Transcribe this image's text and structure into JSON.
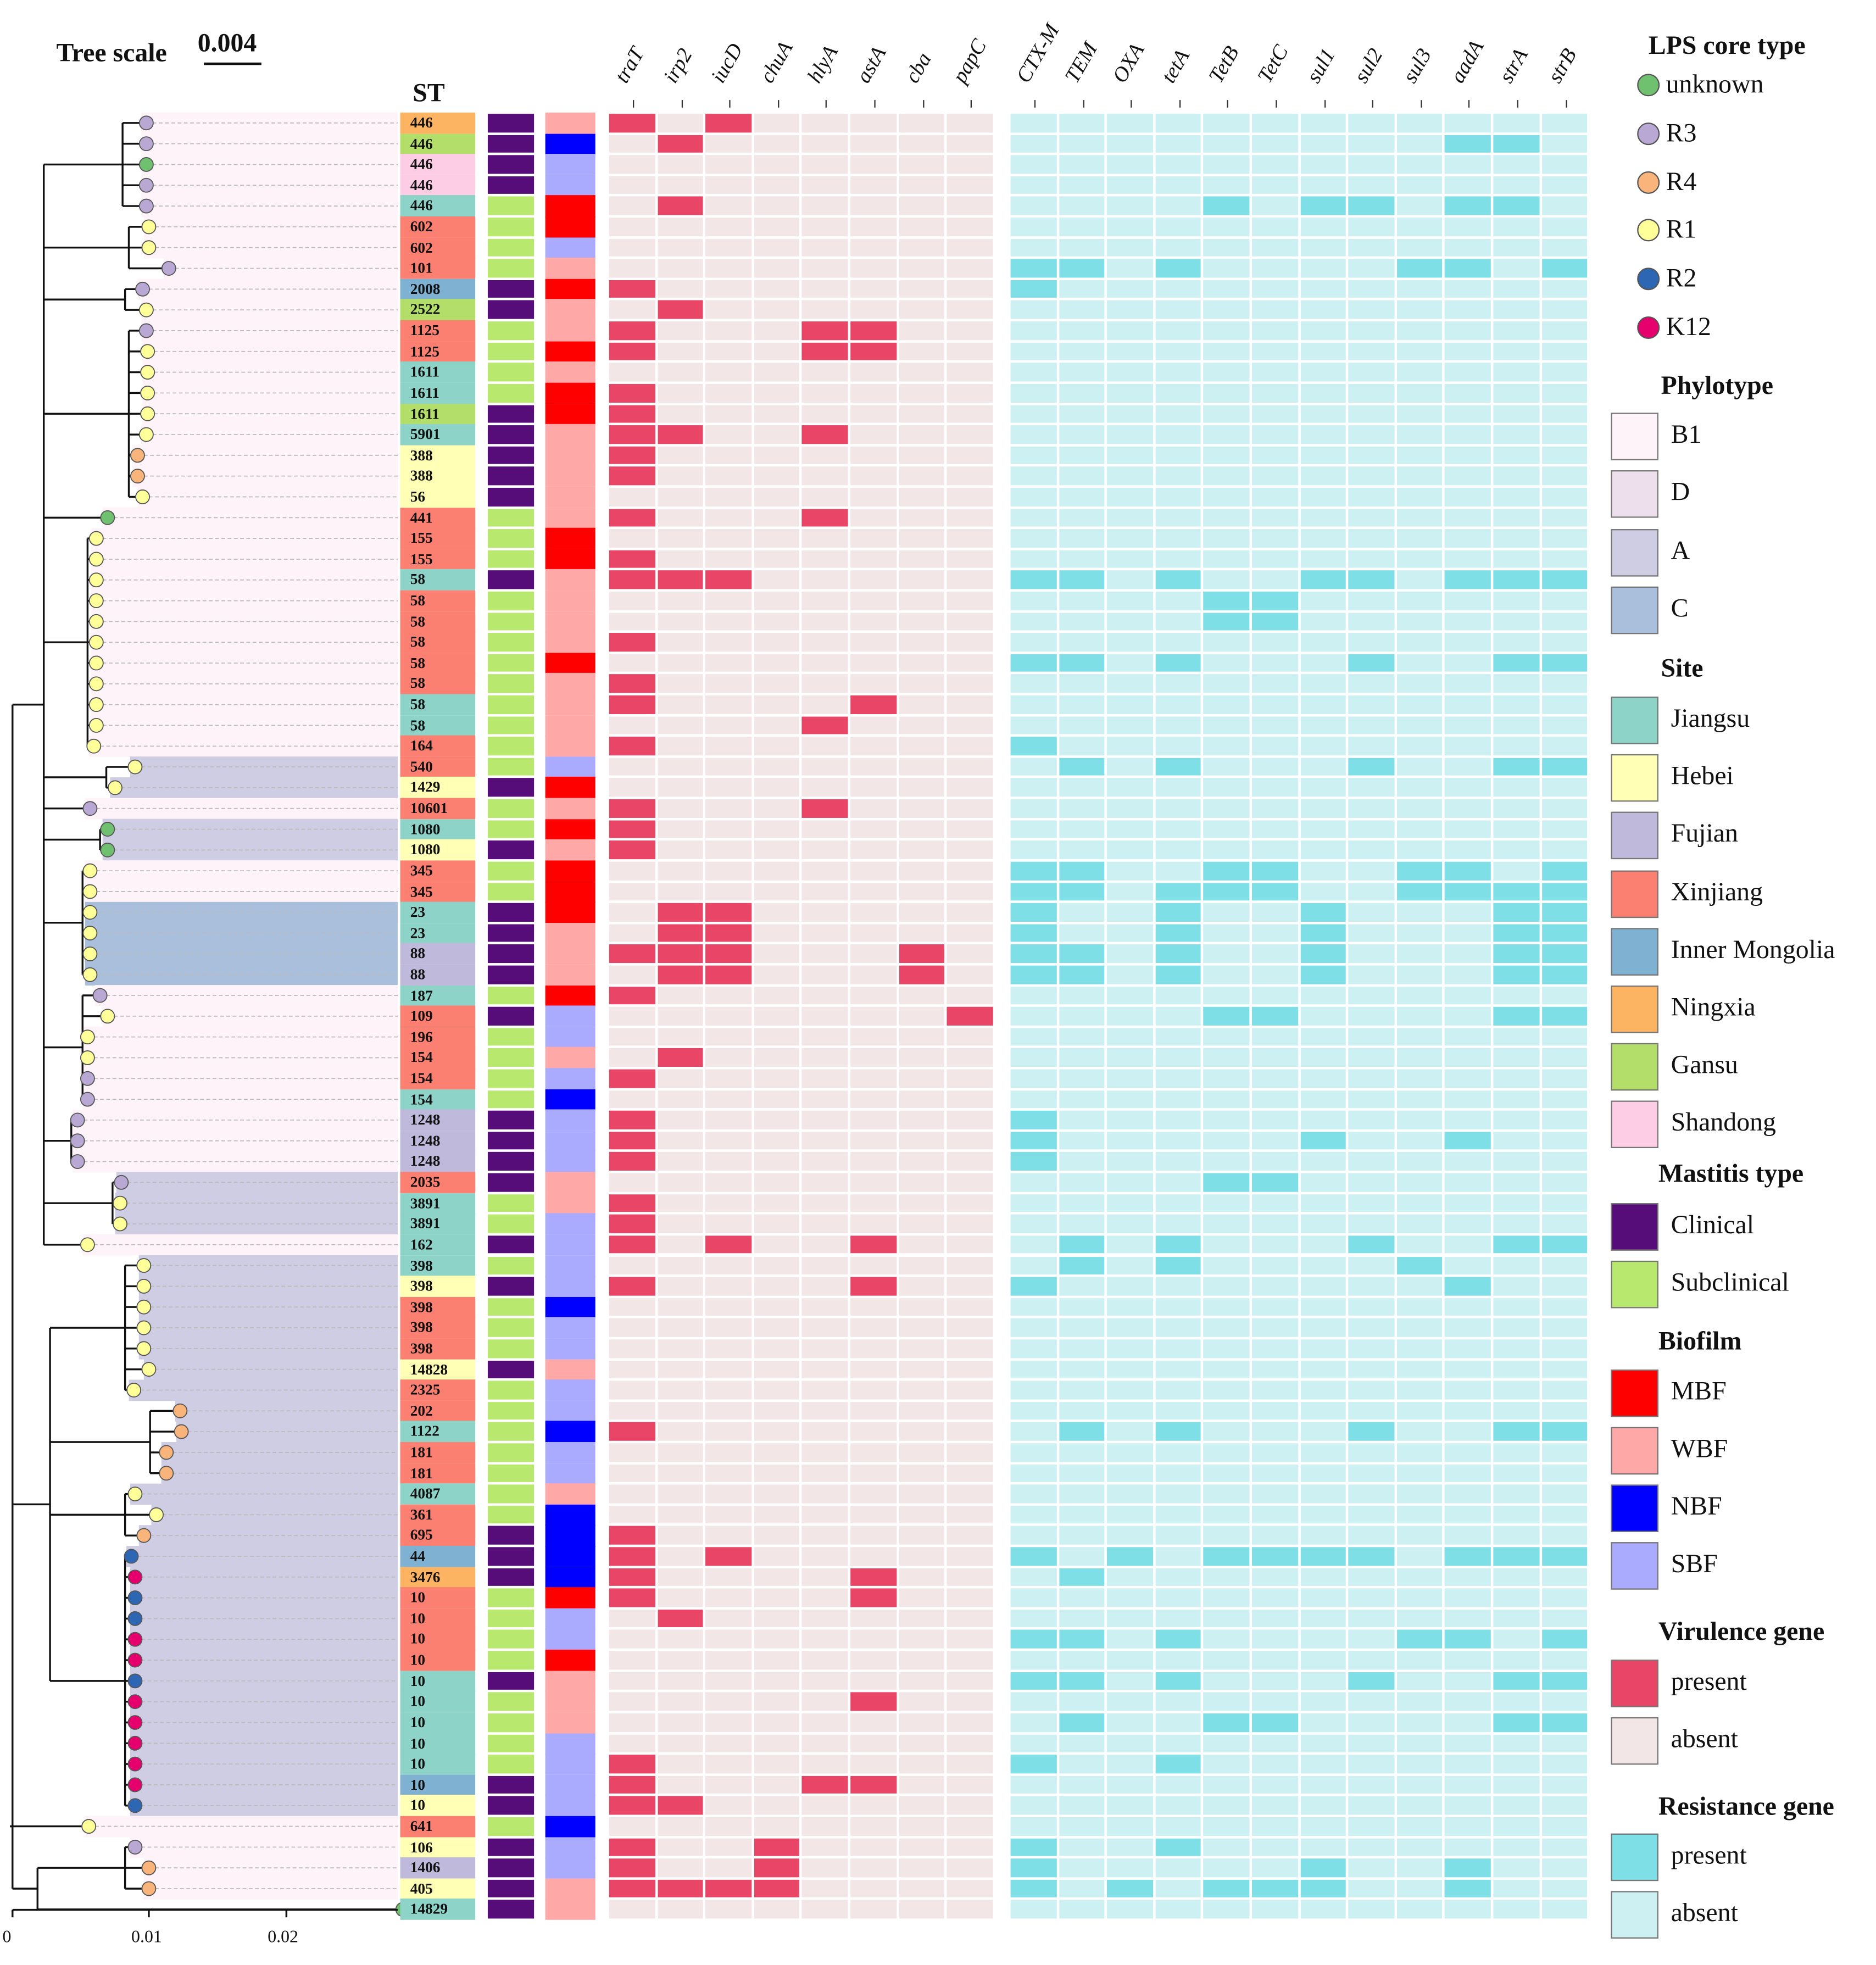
{
  "tree_scale": {
    "label": "Tree scale",
    "value": "0.004"
  },
  "axis_ticks": [
    "0",
    "0.01",
    "0.02"
  ],
  "st_header": "ST",
  "virulence_genes": [
    "traT",
    "irp2",
    "iucD",
    "chuA",
    "hlyA",
    "astA",
    "cba",
    "papC"
  ],
  "resistance_genes": [
    "CTX-M",
    "TEM",
    "OXA",
    "tetA",
    "TetB",
    "TetC",
    "sul1",
    "sul2",
    "sul3",
    "aadA",
    "strA",
    "strB"
  ],
  "colors": {
    "site": {
      "J": "#8ed3c7",
      "H": "#ffffb5",
      "F": "#bfbadb",
      "X": "#fb8072",
      "I": "#7fb1d3",
      "N": "#fdb462",
      "G": "#b3de69",
      "S": "#fccde5"
    },
    "mastitis": {
      "C": "#560d7a",
      "S": "#b8e86e"
    },
    "biofilm": {
      "M": "#ff0000",
      "W": "#ffa8a8",
      "N": "#0000ff",
      "S": "#aaaaff"
    },
    "lps": {
      "u": "#6fc06f",
      "R3": "#b9a8d4",
      "R4": "#f8b47a",
      "R1": "#ffff99",
      "R2": "#2d66b2",
      "K12": "#e6006e"
    },
    "phylo": {
      "B1": "#fdf3f8",
      "D": "#ede0ec",
      "A": "#cfcde3",
      "C": "#a9bfdc"
    },
    "vir": {
      "1": "#e94667",
      "0": "#f2e6e6"
    },
    "res": {
      "1": "#7ee0e6",
      "0": "#cdf0f2"
    }
  },
  "legend": {
    "lps": {
      "title": "LPS core type",
      "items": [
        {
          "key": "u",
          "label": "unknown"
        },
        {
          "key": "R3",
          "label": "R3"
        },
        {
          "key": "R4",
          "label": "R4"
        },
        {
          "key": "R1",
          "label": "R1"
        },
        {
          "key": "R2",
          "label": "R2"
        },
        {
          "key": "K12",
          "label": "K12"
        }
      ]
    },
    "phylotype": {
      "title": "Phylotype",
      "items": [
        {
          "key": "B1",
          "label": "B1"
        },
        {
          "key": "D",
          "label": "D"
        },
        {
          "key": "A",
          "label": "A"
        },
        {
          "key": "C",
          "label": "C"
        }
      ]
    },
    "site": {
      "title": "Site",
      "items": [
        {
          "key": "J",
          "label": "Jiangsu"
        },
        {
          "key": "H",
          "label": "Hebei"
        },
        {
          "key": "F",
          "label": "Fujian"
        },
        {
          "key": "X",
          "label": "Xinjiang"
        },
        {
          "key": "I",
          "label": "Inner Mongolia"
        },
        {
          "key": "N",
          "label": "Ningxia"
        },
        {
          "key": "G",
          "label": "Gansu"
        },
        {
          "key": "S",
          "label": "Shandong"
        }
      ]
    },
    "mastitis": {
      "title": "Mastitis type",
      "items": [
        {
          "key": "C",
          "label": "Clinical"
        },
        {
          "key": "S",
          "label": "Subclinical"
        }
      ]
    },
    "biofilm": {
      "title": "Biofilm",
      "items": [
        {
          "key": "M",
          "label": "MBF"
        },
        {
          "key": "W",
          "label": "WBF"
        },
        {
          "key": "N",
          "label": "NBF"
        },
        {
          "key": "S",
          "label": "SBF"
        }
      ]
    },
    "virulence": {
      "title": "Virulence gene",
      "items": [
        {
          "key": "1",
          "label": "present"
        },
        {
          "key": "0",
          "label": "absent"
        }
      ]
    },
    "resistance": {
      "title": "Resistance gene",
      "items": [
        {
          "key": "1",
          "label": "present"
        },
        {
          "key": "0",
          "label": "absent"
        }
      ]
    }
  },
  "rows": [
    {
      "st": "446",
      "site": "N",
      "m": "C",
      "b": "W",
      "lps": "R3",
      "p": "B1",
      "v": "10100000",
      "r": "000000000000"
    },
    {
      "st": "446",
      "site": "G",
      "m": "C",
      "b": "N",
      "lps": "R3",
      "p": "B1",
      "v": "01000000",
      "r": "000000000110"
    },
    {
      "st": "446",
      "site": "S",
      "m": "C",
      "b": "S",
      "lps": "u",
      "p": "B1",
      "v": "00000000",
      "r": "000000000000"
    },
    {
      "st": "446",
      "site": "S",
      "m": "C",
      "b": "S",
      "lps": "R3",
      "p": "B1",
      "v": "00000000",
      "r": "000000000000"
    },
    {
      "st": "446",
      "site": "J",
      "m": "S",
      "b": "M",
      "lps": "R3",
      "p": "B1",
      "v": "01000000",
      "r": "000010110110"
    },
    {
      "st": "602",
      "site": "X",
      "m": "S",
      "b": "M",
      "lps": "R1",
      "p": "B1",
      "v": "00000000",
      "r": "000000000000"
    },
    {
      "st": "602",
      "site": "X",
      "m": "S",
      "b": "S",
      "lps": "R1",
      "p": "B1",
      "v": "00000000",
      "r": "000000000000"
    },
    {
      "st": "101",
      "site": "X",
      "m": "S",
      "b": "W",
      "lps": "R3",
      "p": "B1",
      "v": "00000000",
      "r": "110100001101"
    },
    {
      "st": "2008",
      "site": "I",
      "m": "C",
      "b": "M",
      "lps": "R3",
      "p": "B1",
      "v": "10000000",
      "r": "100000000000"
    },
    {
      "st": "2522",
      "site": "G",
      "m": "C",
      "b": "W",
      "lps": "R1",
      "p": "B1",
      "v": "01000000",
      "r": "000000000000"
    },
    {
      "st": "1125",
      "site": "X",
      "m": "S",
      "b": "W",
      "lps": "R3",
      "p": "B1",
      "v": "10001100",
      "r": "000000000000"
    },
    {
      "st": "1125",
      "site": "X",
      "m": "S",
      "b": "M",
      "lps": "R1",
      "p": "B1",
      "v": "10001100",
      "r": "000000000000"
    },
    {
      "st": "1611",
      "site": "J",
      "m": "S",
      "b": "W",
      "lps": "R1",
      "p": "B1",
      "v": "00000000",
      "r": "000000000000"
    },
    {
      "st": "1611",
      "site": "J",
      "m": "S",
      "b": "M",
      "lps": "R1",
      "p": "B1",
      "v": "10000000",
      "r": "000000000000"
    },
    {
      "st": "1611",
      "site": "G",
      "m": "C",
      "b": "M",
      "lps": "R1",
      "p": "B1",
      "v": "10000000",
      "r": "000000000000"
    },
    {
      "st": "5901",
      "site": "J",
      "m": "C",
      "b": "W",
      "lps": "R1",
      "p": "B1",
      "v": "11001000",
      "r": "000000000000"
    },
    {
      "st": "388",
      "site": "H",
      "m": "C",
      "b": "W",
      "lps": "R4",
      "p": "B1",
      "v": "10000000",
      "r": "000000000000"
    },
    {
      "st": "388",
      "site": "H",
      "m": "C",
      "b": "W",
      "lps": "R4",
      "p": "B1",
      "v": "10000000",
      "r": "000000000000"
    },
    {
      "st": "56",
      "site": "H",
      "m": "C",
      "b": "W",
      "lps": "R1",
      "p": "B1",
      "v": "00000000",
      "r": "000000000000"
    },
    {
      "st": "441",
      "site": "X",
      "m": "S",
      "b": "W",
      "lps": "u",
      "p": "B1",
      "v": "10001000",
      "r": "000000000000"
    },
    {
      "st": "155",
      "site": "X",
      "m": "S",
      "b": "M",
      "lps": "R1",
      "p": "B1",
      "v": "00000000",
      "r": "000000000000"
    },
    {
      "st": "155",
      "site": "X",
      "m": "S",
      "b": "M",
      "lps": "R1",
      "p": "B1",
      "v": "10000000",
      "r": "000000000000"
    },
    {
      "st": "58",
      "site": "J",
      "m": "C",
      "b": "W",
      "lps": "R1",
      "p": "B1",
      "v": "11100000",
      "r": "110100110111"
    },
    {
      "st": "58",
      "site": "X",
      "m": "S",
      "b": "W",
      "lps": "R1",
      "p": "B1",
      "v": "00000000",
      "r": "000011000000"
    },
    {
      "st": "58",
      "site": "X",
      "m": "S",
      "b": "W",
      "lps": "R1",
      "p": "B1",
      "v": "00000000",
      "r": "000011000000"
    },
    {
      "st": "58",
      "site": "X",
      "m": "S",
      "b": "W",
      "lps": "R1",
      "p": "B1",
      "v": "10000000",
      "r": "000000000000"
    },
    {
      "st": "58",
      "site": "X",
      "m": "S",
      "b": "M",
      "lps": "R1",
      "p": "B1",
      "v": "00000000",
      "r": "110100010011"
    },
    {
      "st": "58",
      "site": "X",
      "m": "S",
      "b": "W",
      "lps": "R1",
      "p": "B1",
      "v": "10000000",
      "r": "000000000000"
    },
    {
      "st": "58",
      "site": "J",
      "m": "S",
      "b": "W",
      "lps": "R1",
      "p": "B1",
      "v": "10000100",
      "r": "000000000000"
    },
    {
      "st": "58",
      "site": "J",
      "m": "S",
      "b": "W",
      "lps": "R1",
      "p": "B1",
      "v": "00001000",
      "r": "000000000000"
    },
    {
      "st": "164",
      "site": "X",
      "m": "S",
      "b": "W",
      "lps": "R1",
      "p": "B1",
      "v": "10000000",
      "r": "100000000000"
    },
    {
      "st": "540",
      "site": "X",
      "m": "S",
      "b": "S",
      "lps": "R1",
      "p": "A",
      "v": "00000000",
      "r": "010100010011"
    },
    {
      "st": "1429",
      "site": "H",
      "m": "C",
      "b": "M",
      "lps": "R1",
      "p": "A",
      "v": "00000000",
      "r": "000000000000"
    },
    {
      "st": "10601",
      "site": "X",
      "m": "S",
      "b": "W",
      "lps": "R3",
      "p": "B1",
      "v": "10001000",
      "r": "000000000000"
    },
    {
      "st": "1080",
      "site": "J",
      "m": "S",
      "b": "M",
      "lps": "u",
      "p": "A",
      "v": "10000000",
      "r": "000000000000"
    },
    {
      "st": "1080",
      "site": "H",
      "m": "C",
      "b": "W",
      "lps": "u",
      "p": "A",
      "v": "10000000",
      "r": "000000000000"
    },
    {
      "st": "345",
      "site": "X",
      "m": "S",
      "b": "M",
      "lps": "R1",
      "p": "B1",
      "v": "00000000",
      "r": "110011001101"
    },
    {
      "st": "345",
      "site": "X",
      "m": "S",
      "b": "M",
      "lps": "R1",
      "p": "B1",
      "v": "00000000",
      "r": "110111001111"
    },
    {
      "st": "23",
      "site": "J",
      "m": "C",
      "b": "M",
      "lps": "R1",
      "p": "C",
      "v": "01100000",
      "r": "100100100011"
    },
    {
      "st": "23",
      "site": "J",
      "m": "C",
      "b": "W",
      "lps": "R1",
      "p": "C",
      "v": "01100000",
      "r": "100100100011"
    },
    {
      "st": "88",
      "site": "F",
      "m": "C",
      "b": "W",
      "lps": "R1",
      "p": "C",
      "v": "11100010",
      "r": "110100100011"
    },
    {
      "st": "88",
      "site": "F",
      "m": "C",
      "b": "W",
      "lps": "R1",
      "p": "C",
      "v": "01100010",
      "r": "110100100011"
    },
    {
      "st": "187",
      "site": "J",
      "m": "S",
      "b": "M",
      "lps": "R3",
      "p": "B1",
      "v": "10000000",
      "r": "000000000000"
    },
    {
      "st": "109",
      "site": "X",
      "m": "C",
      "b": "S",
      "lps": "R1",
      "p": "B1",
      "v": "00000001",
      "r": "000011000011"
    },
    {
      "st": "196",
      "site": "X",
      "m": "S",
      "b": "S",
      "lps": "R1",
      "p": "B1",
      "v": "00000000",
      "r": "000000000000"
    },
    {
      "st": "154",
      "site": "X",
      "m": "S",
      "b": "W",
      "lps": "R1",
      "p": "B1",
      "v": "01000000",
      "r": "000000000000"
    },
    {
      "st": "154",
      "site": "X",
      "m": "S",
      "b": "S",
      "lps": "R3",
      "p": "B1",
      "v": "10000000",
      "r": "000000000000"
    },
    {
      "st": "154",
      "site": "J",
      "m": "S",
      "b": "N",
      "lps": "R3",
      "p": "B1",
      "v": "00000000",
      "r": "000000000000"
    },
    {
      "st": "1248",
      "site": "F",
      "m": "C",
      "b": "S",
      "lps": "R3",
      "p": "B1",
      "v": "10000000",
      "r": "100000000000"
    },
    {
      "st": "1248",
      "site": "F",
      "m": "C",
      "b": "S",
      "lps": "R3",
      "p": "B1",
      "v": "10000000",
      "r": "100000100100"
    },
    {
      "st": "1248",
      "site": "F",
      "m": "C",
      "b": "S",
      "lps": "R3",
      "p": "B1",
      "v": "10000000",
      "r": "100000000000"
    },
    {
      "st": "2035",
      "site": "X",
      "m": "C",
      "b": "W",
      "lps": "R3",
      "p": "A",
      "v": "00000000",
      "r": "000011000000"
    },
    {
      "st": "3891",
      "site": "J",
      "m": "S",
      "b": "W",
      "lps": "R1",
      "p": "A",
      "v": "10000000",
      "r": "000000000000"
    },
    {
      "st": "3891",
      "site": "J",
      "m": "S",
      "b": "S",
      "lps": "R1",
      "p": "A",
      "v": "10000000",
      "r": "000000000000"
    },
    {
      "st": "162",
      "site": "J",
      "m": "C",
      "b": "S",
      "lps": "R1",
      "p": "B1",
      "v": "10100100",
      "r": "010100010011"
    },
    {
      "st": "398",
      "site": "J",
      "m": "S",
      "b": "S",
      "lps": "R1",
      "p": "A",
      "v": "00000000",
      "r": "010100001000"
    },
    {
      "st": "398",
      "site": "H",
      "m": "C",
      "b": "S",
      "lps": "R1",
      "p": "A",
      "v": "10000100",
      "r": "100000000100"
    },
    {
      "st": "398",
      "site": "X",
      "m": "S",
      "b": "N",
      "lps": "R1",
      "p": "A",
      "v": "00000000",
      "r": "000000000000"
    },
    {
      "st": "398",
      "site": "X",
      "m": "S",
      "b": "S",
      "lps": "R1",
      "p": "A",
      "v": "00000000",
      "r": "000000000000"
    },
    {
      "st": "398",
      "site": "X",
      "m": "S",
      "b": "S",
      "lps": "R1",
      "p": "A",
      "v": "00000000",
      "r": "000000000000"
    },
    {
      "st": "14828",
      "site": "H",
      "m": "C",
      "b": "W",
      "lps": "R1",
      "p": "A",
      "v": "00000000",
      "r": "000000000000"
    },
    {
      "st": "2325",
      "site": "X",
      "m": "S",
      "b": "S",
      "lps": "R1",
      "p": "A",
      "v": "00000000",
      "r": "000000000000"
    },
    {
      "st": "202",
      "site": "X",
      "m": "S",
      "b": "S",
      "lps": "R4",
      "p": "A",
      "v": "00000000",
      "r": "000000000000"
    },
    {
      "st": "1122",
      "site": "J",
      "m": "S",
      "b": "N",
      "lps": "R4",
      "p": "A",
      "v": "10000000",
      "r": "010100010011"
    },
    {
      "st": "181",
      "site": "X",
      "m": "S",
      "b": "S",
      "lps": "R4",
      "p": "A",
      "v": "00000000",
      "r": "000000000000"
    },
    {
      "st": "181",
      "site": "X",
      "m": "S",
      "b": "S",
      "lps": "R4",
      "p": "A",
      "v": "00000000",
      "r": "000000000000"
    },
    {
      "st": "4087",
      "site": "J",
      "m": "S",
      "b": "W",
      "lps": "R1",
      "p": "A",
      "v": "00000000",
      "r": "000000000000"
    },
    {
      "st": "361",
      "site": "X",
      "m": "S",
      "b": "N",
      "lps": "R1",
      "p": "A",
      "v": "00000000",
      "r": "000000000000"
    },
    {
      "st": "695",
      "site": "X",
      "m": "C",
      "b": "N",
      "lps": "R4",
      "p": "A",
      "v": "10000000",
      "r": "000000000000"
    },
    {
      "st": "44",
      "site": "I",
      "m": "C",
      "b": "N",
      "lps": "R2",
      "p": "A",
      "v": "10100000",
      "r": "101011110111"
    },
    {
      "st": "3476",
      "site": "N",
      "m": "C",
      "b": "N",
      "lps": "K12",
      "p": "A",
      "v": "10000100",
      "r": "010000000000"
    },
    {
      "st": "10",
      "site": "X",
      "m": "S",
      "b": "M",
      "lps": "R2",
      "p": "A",
      "v": "10000100",
      "r": "000000000000"
    },
    {
      "st": "10",
      "site": "X",
      "m": "S",
      "b": "S",
      "lps": "R2",
      "p": "A",
      "v": "01000000",
      "r": "000000000000"
    },
    {
      "st": "10",
      "site": "X",
      "m": "S",
      "b": "S",
      "lps": "K12",
      "p": "A",
      "v": "00000000",
      "r": "110100001101"
    },
    {
      "st": "10",
      "site": "X",
      "m": "S",
      "b": "M",
      "lps": "K12",
      "p": "A",
      "v": "00000000",
      "r": "000000000000"
    },
    {
      "st": "10",
      "site": "J",
      "m": "C",
      "b": "W",
      "lps": "R2",
      "p": "A",
      "v": "00000000",
      "r": "110100010011"
    },
    {
      "st": "10",
      "site": "J",
      "m": "S",
      "b": "W",
      "lps": "K12",
      "p": "A",
      "v": "00000100",
      "r": "000000000000"
    },
    {
      "st": "10",
      "site": "J",
      "m": "S",
      "b": "W",
      "lps": "K12",
      "p": "A",
      "v": "00000000",
      "r": "010011000011"
    },
    {
      "st": "10",
      "site": "J",
      "m": "S",
      "b": "S",
      "lps": "K12",
      "p": "A",
      "v": "00000000",
      "r": "000000000000"
    },
    {
      "st": "10",
      "site": "J",
      "m": "S",
      "b": "S",
      "lps": "K12",
      "p": "A",
      "v": "10000000",
      "r": "100100000000"
    },
    {
      "st": "10",
      "site": "I",
      "m": "C",
      "b": "S",
      "lps": "K12",
      "p": "A",
      "v": "10001100",
      "r": "000000000000"
    },
    {
      "st": "10",
      "site": "H",
      "m": "C",
      "b": "S",
      "lps": "R2",
      "p": "A",
      "v": "11000000",
      "r": "000000000000"
    },
    {
      "st": "641",
      "site": "X",
      "m": "S",
      "b": "N",
      "lps": "R1",
      "p": "B1",
      "v": "00000000",
      "r": "000000000000"
    },
    {
      "st": "106",
      "site": "H",
      "m": "C",
      "b": "S",
      "lps": "R3",
      "p": "B1",
      "v": "10010000",
      "r": "100100000000"
    },
    {
      "st": "1406",
      "site": "F",
      "m": "C",
      "b": "S",
      "lps": "R4",
      "p": "B1",
      "v": "10010000",
      "r": "100000100100"
    },
    {
      "st": "405",
      "site": "H",
      "m": "C",
      "b": "W",
      "lps": "R4",
      "p": "B1",
      "v": "11110000",
      "r": "101011100100"
    },
    {
      "st": "14829",
      "site": "J",
      "m": "C",
      "b": "W",
      "lps": "u",
      "p": "B1",
      "v": "00000000",
      "r": "000000000000"
    }
  ]
}
